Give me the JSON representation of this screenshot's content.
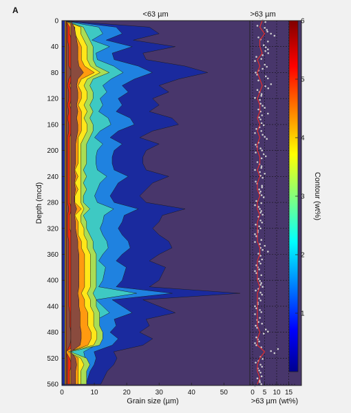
{
  "panel_label": "A",
  "chart_data": [
    {
      "type": "heatmap",
      "title": "<63 µm",
      "xlabel": "Grain size (µm)",
      "ylabel": "Depth (mcd)",
      "x_ticks": [
        "0",
        "10",
        "20",
        "30",
        "40",
        "50"
      ],
      "y_ticks": [
        "0",
        "40",
        "80",
        "120",
        "160",
        "200",
        "240",
        "280",
        "320",
        "360",
        "400",
        "440",
        "480",
        "520",
        "560"
      ],
      "xlim": [
        0,
        58
      ],
      "ylim": [
        0,
        562
      ],
      "y_inverted": true,
      "colorbar": {
        "label": "Contour (wt%)",
        "ticks": [
          "1",
          "2",
          "3",
          "4",
          "5",
          "6"
        ],
        "range": [
          0,
          6
        ]
      },
      "background_color": "#48366b",
      "contour_colors": [
        "#1a2a9e",
        "#1f82e0",
        "#3ec9c3",
        "#a9dd55",
        "#ffe61a",
        "#ff9a10",
        "#ee2a0e",
        "#8a4b3e"
      ],
      "profile_depths": [
        0,
        10,
        20,
        30,
        40,
        50,
        60,
        70,
        80,
        90,
        100,
        110,
        120,
        130,
        140,
        150,
        160,
        170,
        180,
        190,
        200,
        210,
        220,
        230,
        240,
        250,
        260,
        270,
        280,
        290,
        300,
        310,
        320,
        330,
        340,
        350,
        360,
        370,
        380,
        390,
        400,
        410,
        420,
        430,
        440,
        450,
        460,
        470,
        480,
        490,
        500,
        510,
        520,
        530,
        540,
        550,
        560
      ],
      "contour_extent_um": [
        [
          0,
          6,
          7,
          8,
          9,
          9,
          9,
          10,
          14,
          9,
          8,
          9,
          9,
          8,
          9,
          8,
          9,
          9,
          8,
          7,
          7,
          7,
          7,
          6,
          7,
          6,
          7,
          6,
          6,
          8,
          6,
          7,
          7,
          8,
          9,
          9,
          10,
          10,
          10,
          10,
          10,
          10,
          9,
          10,
          10,
          11,
          11,
          11,
          12,
          12,
          11,
          2,
          7,
          8,
          7,
          7,
          7
        ],
        [
          0,
          5,
          5,
          6,
          7,
          7,
          7,
          8,
          11,
          7,
          6,
          7,
          7,
          6,
          7,
          6,
          7,
          7,
          6,
          5,
          5,
          5,
          5,
          5,
          5,
          5,
          5,
          5,
          5,
          6,
          5,
          5,
          6,
          6,
          7,
          7,
          8,
          8,
          8,
          8,
          8,
          8,
          7,
          8,
          8,
          9,
          9,
          9,
          10,
          10,
          9,
          1,
          5,
          6,
          5,
          5,
          5
        ],
        [
          0,
          3,
          3,
          4,
          5,
          5,
          5,
          6,
          9,
          5,
          4,
          5,
          5,
          4,
          5,
          5,
          5,
          5,
          4,
          4,
          4,
          4,
          4,
          3,
          4,
          3,
          4,
          3,
          3,
          5,
          3,
          4,
          4,
          4,
          5,
          5,
          6,
          6,
          6,
          6,
          6,
          6,
          5,
          6,
          6,
          7,
          7,
          7,
          8,
          8,
          7,
          1,
          4,
          4,
          4,
          4,
          4
        ],
        [
          0,
          2,
          2,
          3,
          3,
          3,
          3,
          4,
          7,
          3,
          2,
          3,
          3,
          2,
          3,
          3,
          3,
          3,
          2,
          2,
          2,
          2,
          2,
          2,
          2,
          2,
          2,
          2,
          2,
          3,
          2,
          2,
          2,
          3,
          3,
          3,
          4,
          4,
          4,
          4,
          4,
          4,
          3,
          4,
          4,
          5,
          5,
          5,
          6,
          6,
          5,
          0,
          2,
          3,
          2,
          2,
          2
        ],
        [
          0,
          1,
          1,
          1,
          2,
          2,
          2,
          2,
          5,
          2,
          1,
          2,
          2,
          1,
          2,
          1,
          2,
          2,
          1,
          1,
          1,
          1,
          1,
          1,
          1,
          1,
          1,
          1,
          1,
          2,
          1,
          1,
          1,
          1,
          2,
          2,
          2,
          2,
          2,
          2,
          2,
          2,
          2,
          2,
          2,
          3,
          3,
          3,
          4,
          4,
          3,
          0,
          1,
          1,
          1,
          1,
          1
        ]
      ],
      "contour_start_um": [
        0,
        1.5,
        2,
        2.5,
        3,
        3.5,
        4,
        5.5
      ],
      "contour_scale": [
        1.0,
        1.0,
        1.0,
        1.0,
        1.0,
        1.0,
        0.6,
        0.35
      ],
      "outer_extent_um": [
        0,
        27,
        30,
        22,
        35,
        25,
        26,
        38,
        45,
        36,
        30,
        33,
        28,
        30,
        27,
        34,
        36,
        28,
        24,
        30,
        26,
        25,
        25,
        26,
        33,
        28,
        26,
        24,
        26,
        38,
        31,
        30,
        28,
        30,
        33,
        34,
        30,
        27,
        32,
        31,
        30,
        27,
        55,
        25,
        30,
        35,
        26,
        27,
        24,
        28,
        25,
        16,
        17,
        16,
        14,
        13,
        12
      ]
    },
    {
      "type": "line",
      "title": ">63 µm",
      "xlabel": ">63 µm (wt%)",
      "x_ticks": [
        "0",
        "5",
        "10",
        "15"
      ],
      "xlim": [
        0,
        16
      ],
      "ylim": [
        0,
        562
      ],
      "line_color": "#e32d2d",
      "point_color": "#cfcfcf",
      "depth": [
        0,
        10,
        20,
        30,
        40,
        50,
        60,
        70,
        80,
        90,
        100,
        110,
        120,
        130,
        140,
        150,
        160,
        170,
        180,
        190,
        200,
        210,
        220,
        230,
        240,
        250,
        260,
        270,
        280,
        290,
        300,
        310,
        320,
        330,
        340,
        350,
        360,
        370,
        380,
        390,
        400,
        410,
        420,
        430,
        440,
        450,
        460,
        470,
        480,
        490,
        500,
        510,
        520,
        530,
        540,
        550,
        560
      ],
      "value": [
        4,
        3,
        5,
        3,
        3,
        4,
        2,
        3,
        2,
        3,
        4,
        3,
        2,
        3,
        3,
        2,
        3,
        2,
        3,
        2,
        2,
        3,
        3,
        2,
        3,
        2,
        2,
        3,
        2,
        2,
        3,
        2,
        2,
        2,
        2,
        3,
        3,
        2,
        2,
        2,
        2,
        3,
        2,
        2,
        2,
        2,
        2,
        2,
        3,
        2,
        2,
        5,
        3,
        2,
        2,
        3,
        2
      ]
    }
  ]
}
